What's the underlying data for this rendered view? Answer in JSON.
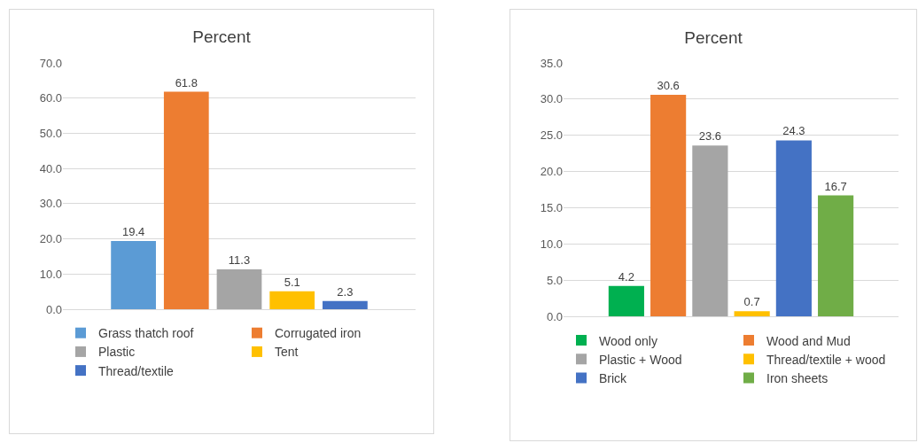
{
  "chart_data": [
    {
      "type": "bar",
      "title": "Percent",
      "categories": [
        null
      ],
      "series": [
        {
          "name": "Grass thatch roof",
          "color": "#5b9bd5",
          "values": [
            19.4
          ]
        },
        {
          "name": "Corrugated iron",
          "color": "#ed7d31",
          "values": [
            61.8
          ]
        },
        {
          "name": "Plastic",
          "color": "#a5a5a5",
          "values": [
            11.3
          ]
        },
        {
          "name": "Tent",
          "color": "#ffc000",
          "values": [
            5.1
          ]
        },
        {
          "name": "Thread/textile",
          "color": "#4472c4",
          "values": [
            2.3
          ]
        }
      ],
      "ylim": [
        0,
        70
      ],
      "yticks": [
        {
          "value": 0,
          "label": "0.0"
        },
        {
          "value": 10,
          "label": "10.0"
        },
        {
          "value": 20,
          "label": "20.0"
        },
        {
          "value": 30,
          "label": "30.0"
        },
        {
          "value": 40,
          "label": "40.0"
        },
        {
          "value": 50,
          "label": "50.0"
        },
        {
          "value": 60,
          "label": "60.0"
        },
        {
          "value": 70,
          "label": "70.0"
        }
      ],
      "grid": "y",
      "legend": "bottom",
      "data_labels": true,
      "tick_labels": "y"
    },
    {
      "type": "bar",
      "title": "Percent",
      "categories": [
        null
      ],
      "series": [
        {
          "name": "Wood only",
          "color": "#00b050",
          "values": [
            4.2
          ]
        },
        {
          "name": "Wood and Mud",
          "color": "#ed7d31",
          "values": [
            30.6
          ]
        },
        {
          "name": "Plastic + Wood",
          "color": "#a5a5a5",
          "values": [
            23.6
          ]
        },
        {
          "name": "Thread/textile + wood",
          "color": "#ffc000",
          "values": [
            0.7
          ]
        },
        {
          "name": "Brick",
          "color": "#4472c4",
          "values": [
            24.3
          ]
        },
        {
          "name": "Iron sheets",
          "color": "#70ad47",
          "values": [
            16.7
          ]
        }
      ],
      "ylim": [
        0,
        35
      ],
      "yticks": [
        {
          "value": 0,
          "label": "0.0"
        },
        {
          "value": 5,
          "label": "5.0"
        },
        {
          "value": 10,
          "label": "10.0"
        },
        {
          "value": 15,
          "label": "15.0"
        },
        {
          "value": 20,
          "label": "20.0"
        },
        {
          "value": 25,
          "label": "25.0"
        },
        {
          "value": 30,
          "label": "30.0"
        },
        {
          "value": 35,
          "label": "35.0"
        }
      ],
      "grid": "y",
      "legend": "bottom",
      "data_labels": true,
      "tick_labels": "y"
    }
  ]
}
